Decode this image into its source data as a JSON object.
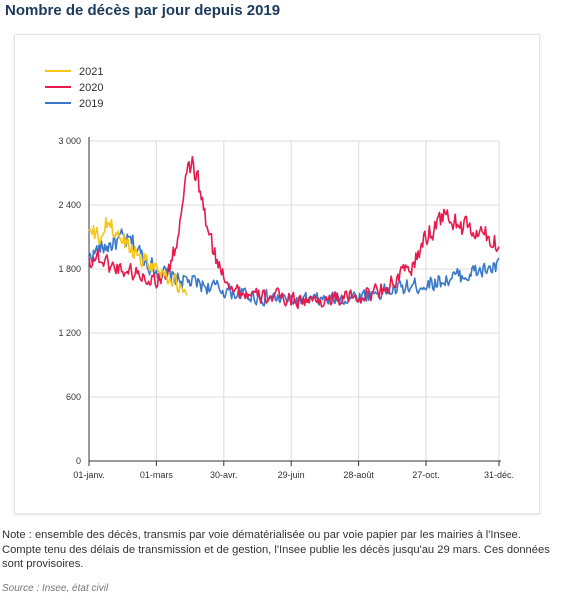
{
  "page": {
    "title": "Nombre de décès par jour depuis 2019",
    "note": "Note : ensemble des décès, transmis par voie dématérialisée ou par voie papier par les mairies à l'Insee. Compte tenu des délais de transmission et de gestion, l'Insee publie les décès jusqu'au 29 mars. Ces données sont provisoires.",
    "source": "Source : Insee, état civil"
  },
  "colors": {
    "2021": "#f5c518",
    "2020": "#e8194b",
    "2019": "#3a78c9",
    "grid": "#dcdcdc",
    "axis": "#333333"
  },
  "chart_data": {
    "type": "line",
    "title": "",
    "xlabel": "",
    "ylabel": "",
    "x_unit": "day of year",
    "xlim": [
      1,
      366
    ],
    "ylim": [
      0,
      3000
    ],
    "y_ticks": [
      0,
      600,
      1200,
      1800,
      2400,
      3000
    ],
    "y_tick_labels": [
      "0",
      "600",
      "1 200",
      "1 800",
      "2 400",
      "3 000"
    ],
    "x_ticks": [
      1,
      61,
      121,
      181,
      241,
      301,
      366
    ],
    "x_tick_labels": [
      "01-janv.",
      "01-mars",
      "30-avr.",
      "29-juin",
      "28-août",
      "27-oct.",
      "31-déc."
    ],
    "grid": true,
    "legend": "top-left",
    "series": [
      {
        "name": "2021",
        "points": [
          [
            1,
            2150
          ],
          [
            10,
            2080
          ],
          [
            18,
            2240
          ],
          [
            25,
            2130
          ],
          [
            32,
            2060
          ],
          [
            40,
            1980
          ],
          [
            48,
            1920
          ],
          [
            56,
            1850
          ],
          [
            62,
            1800
          ],
          [
            70,
            1750
          ],
          [
            79,
            1650
          ],
          [
            86,
            1560
          ],
          [
            88,
            1550
          ]
        ]
      },
      {
        "name": "2020",
        "points": [
          [
            1,
            1880
          ],
          [
            8,
            1920
          ],
          [
            20,
            1830
          ],
          [
            35,
            1790
          ],
          [
            50,
            1730
          ],
          [
            62,
            1700
          ],
          [
            72,
            1780
          ],
          [
            80,
            2100
          ],
          [
            86,
            2500
          ],
          [
            90,
            2720
          ],
          [
            93,
            2780
          ],
          [
            96,
            2700
          ],
          [
            101,
            2450
          ],
          [
            107,
            2150
          ],
          [
            112,
            1950
          ],
          [
            118,
            1800
          ],
          [
            125,
            1690
          ],
          [
            135,
            1580
          ],
          [
            150,
            1540
          ],
          [
            165,
            1540
          ],
          [
            180,
            1520
          ],
          [
            200,
            1500
          ],
          [
            220,
            1520
          ],
          [
            240,
            1540
          ],
          [
            260,
            1600
          ],
          [
            275,
            1700
          ],
          [
            290,
            1840
          ],
          [
            300,
            2080
          ],
          [
            310,
            2220
          ],
          [
            315,
            2300
          ],
          [
            325,
            2250
          ],
          [
            340,
            2160
          ],
          [
            355,
            2100
          ],
          [
            366,
            2020
          ]
        ]
      },
      {
        "name": "2019",
        "points": [
          [
            1,
            1920
          ],
          [
            15,
            2010
          ],
          [
            30,
            2070
          ],
          [
            40,
            2040
          ],
          [
            50,
            1900
          ],
          [
            62,
            1780
          ],
          [
            75,
            1720
          ],
          [
            90,
            1680
          ],
          [
            110,
            1630
          ],
          [
            130,
            1580
          ],
          [
            150,
            1540
          ],
          [
            170,
            1520
          ],
          [
            190,
            1500
          ],
          [
            210,
            1510
          ],
          [
            230,
            1530
          ],
          [
            250,
            1560
          ],
          [
            270,
            1600
          ],
          [
            290,
            1640
          ],
          [
            310,
            1680
          ],
          [
            330,
            1730
          ],
          [
            350,
            1780
          ],
          [
            366,
            1820
          ]
        ]
      }
    ]
  }
}
